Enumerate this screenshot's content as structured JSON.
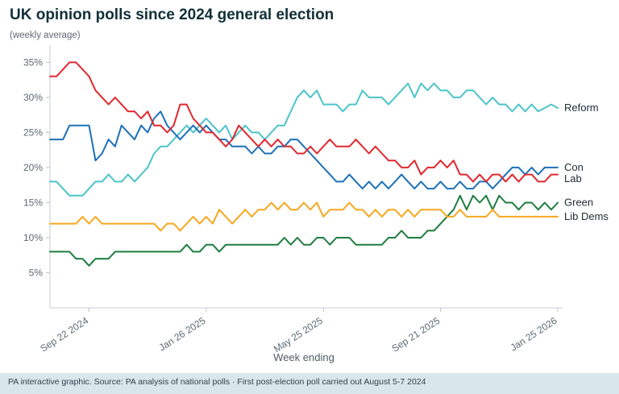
{
  "header": {
    "title": "UK opinion polls since 2024 general election",
    "subtitle": "(weekly average)"
  },
  "footer": {
    "text": "PA interactive graphic. Source: PA analysis of national polls · First post-election poll carried out August 5-7 2024"
  },
  "chart_data": {
    "type": "line",
    "title": "UK opinion polls since 2024 general election",
    "subtitle": "(weekly average)",
    "xlabel": "Week ending",
    "ylabel": "",
    "ylim": [
      0,
      37
    ],
    "y_ticks": [
      5,
      10,
      15,
      20,
      25,
      30,
      35
    ],
    "y_tick_suffix": "%",
    "grid": false,
    "legend_position": "right-end-labels",
    "n_points": 79,
    "x_tick_labels": [
      "Sep 22 2024",
      "Jan 26 2025",
      "May 25 2025",
      "Sep 21 2025",
      "Jan 25 2026"
    ],
    "x_tick_indices": [
      6,
      24,
      42,
      60,
      78
    ],
    "series": [
      {
        "name": "Reform",
        "color": "#4cc4c9",
        "values": [
          18,
          18,
          17,
          16,
          16,
          16,
          17,
          18,
          18,
          19,
          18,
          18,
          19,
          18,
          19,
          20,
          22,
          23,
          23,
          24,
          25,
          26,
          25,
          26,
          27,
          26,
          25,
          26,
          24,
          25,
          26,
          25,
          25,
          24,
          25,
          26,
          26,
          28,
          30,
          31,
          30,
          31,
          29,
          29,
          29,
          28,
          29,
          29,
          31,
          30,
          30,
          30,
          29,
          30,
          31,
          32,
          30,
          32,
          31,
          32,
          31,
          31,
          30,
          30,
          31,
          31,
          30,
          29,
          30,
          29,
          29,
          28,
          29,
          28,
          29,
          28,
          28.5,
          29,
          28.5
        ]
      },
      {
        "name": "Con",
        "color": "#1d70b8",
        "values": [
          24,
          24,
          24,
          26,
          26,
          26,
          26,
          21,
          22,
          24,
          23,
          26,
          25,
          24,
          26,
          25,
          27,
          28,
          26,
          25,
          24,
          25,
          26,
          25,
          26,
          25,
          24,
          24,
          23,
          23,
          23,
          22,
          23,
          22,
          22,
          23,
          23,
          24,
          24,
          23,
          22,
          21,
          20,
          19,
          18,
          18,
          19,
          18,
          17,
          18,
          17,
          18,
          17,
          18,
          19,
          18,
          17,
          18,
          17,
          17,
          18,
          17,
          17,
          18,
          17,
          17,
          18,
          18,
          17,
          18,
          19,
          20,
          20,
          19,
          20,
          19,
          20,
          20,
          20
        ]
      },
      {
        "name": "Lab",
        "color": "#e0282e",
        "values": [
          33,
          33,
          34,
          35,
          35,
          34,
          33,
          31,
          30,
          29,
          30,
          29,
          28,
          28,
          27,
          28,
          26,
          26,
          25,
          26,
          29,
          29,
          27,
          26,
          25,
          25,
          24,
          23,
          24,
          26,
          25,
          24,
          23,
          24,
          23,
          24,
          23,
          23,
          22,
          22,
          23,
          22,
          23,
          24,
          23,
          23,
          23,
          24,
          23,
          22,
          23,
          22,
          21,
          21,
          20,
          20,
          21,
          19,
          20,
          20,
          21,
          20,
          21,
          19,
          19,
          18,
          19,
          18,
          19,
          19,
          18,
          19,
          18,
          19,
          19,
          18,
          18,
          19,
          19
        ]
      },
      {
        "name": "Green",
        "color": "#1e7d3f",
        "values": [
          8,
          8,
          8,
          8,
          7,
          7,
          6,
          7,
          7,
          7,
          8,
          8,
          8,
          8,
          8,
          8,
          8,
          8,
          8,
          8,
          8,
          9,
          8,
          8,
          9,
          9,
          8,
          9,
          9,
          9,
          9,
          9,
          9,
          9,
          9,
          9,
          10,
          9,
          10,
          9,
          9,
          10,
          10,
          9,
          10,
          10,
          10,
          9,
          9,
          9,
          9,
          9,
          10,
          10,
          11,
          10,
          10,
          10,
          11,
          11,
          12,
          13,
          14,
          16,
          14,
          16,
          15,
          16,
          14,
          16,
          15,
          15,
          14,
          15,
          15,
          14,
          15,
          14,
          15
        ]
      },
      {
        "name": "Lib Dems",
        "color": "#f6a81f",
        "values": [
          12,
          12,
          12,
          12,
          12,
          13,
          12,
          13,
          12,
          12,
          12,
          12,
          12,
          12,
          12,
          12,
          12,
          11,
          12,
          12,
          11,
          12,
          13,
          12,
          13,
          12,
          14,
          13,
          12,
          13,
          14,
          13,
          14,
          14,
          15,
          14,
          15,
          14,
          14,
          15,
          14,
          15,
          13,
          14,
          14,
          14,
          15,
          14,
          14,
          13,
          14,
          13,
          14,
          14,
          13,
          14,
          13,
          14,
          14,
          14,
          14,
          13,
          13,
          14,
          13,
          13,
          13,
          13,
          14,
          13,
          13,
          13,
          13,
          13,
          13,
          13,
          13,
          13,
          13
        ]
      }
    ]
  }
}
